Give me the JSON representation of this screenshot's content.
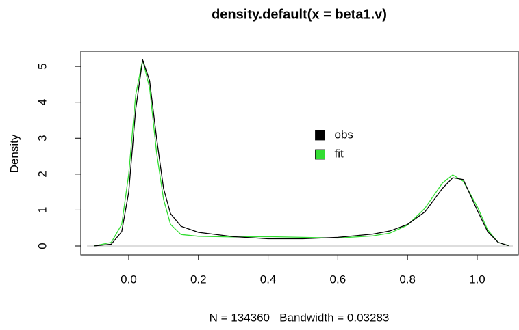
{
  "chart_data": {
    "type": "line",
    "title": "density.default(x = beta1.v)",
    "x_label": "N = 134360   Bandwidth = 0.03283",
    "y_label": "Density",
    "x": [
      -0.1,
      -0.05,
      -0.02,
      0,
      0.02,
      0.04,
      0.06,
      0.08,
      0.1,
      0.12,
      0.15,
      0.2,
      0.3,
      0.4,
      0.5,
      0.6,
      0.7,
      0.75,
      0.8,
      0.85,
      0.9,
      0.93,
      0.96,
      1.0,
      1.03,
      1.06,
      1.09
    ],
    "series": [
      {
        "name": "obs",
        "color": "#000000",
        "values": [
          0,
          0.05,
          0.4,
          1.5,
          3.8,
          5.18,
          4.6,
          3.0,
          1.6,
          0.9,
          0.55,
          0.38,
          0.26,
          0.2,
          0.2,
          0.24,
          0.33,
          0.42,
          0.6,
          0.95,
          1.6,
          1.9,
          1.85,
          1.0,
          0.4,
          0.1,
          0.01
        ]
      },
      {
        "name": "fit",
        "color": "#33dd33",
        "values": [
          0,
          0.1,
          0.6,
          2.0,
          4.2,
          5.18,
          4.4,
          2.6,
          1.3,
          0.6,
          0.32,
          0.27,
          0.25,
          0.26,
          0.24,
          0.22,
          0.28,
          0.36,
          0.58,
          1.05,
          1.75,
          1.98,
          1.8,
          1.1,
          0.45,
          0.1,
          0.01
        ]
      }
    ],
    "xlim": [
      -0.1375,
      1.118
    ],
    "ylim": [
      -0.247,
      5.42
    ],
    "xticks": [
      {
        "value": 0,
        "label": "0.0"
      },
      0.2,
      0.4,
      0.6,
      0.8,
      {
        "value": 1,
        "label": "1.0"
      }
    ],
    "yticks": [
      0,
      1,
      2,
      3,
      4,
      5
    ],
    "legend": "center"
  }
}
